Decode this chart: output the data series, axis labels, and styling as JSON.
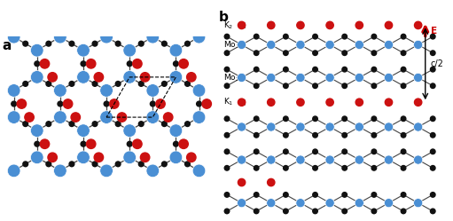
{
  "fig_width": 5.11,
  "fig_height": 2.49,
  "dpi": 100,
  "background": "#ffffff",
  "label_a": "a",
  "label_b": "b",
  "mo_color": "#4a8fd4",
  "k_color": "#cc1111",
  "s_color": "#111111",
  "bond_color": "#444444",
  "arrow_color": "#cc0000",
  "label_K2": "K$_2$",
  "label_Mo1": "Mo$_1$",
  "label_Mo2": "Mo$_2$",
  "label_K1": "K$_1$",
  "label_E": "E",
  "label_c2": "c/2"
}
